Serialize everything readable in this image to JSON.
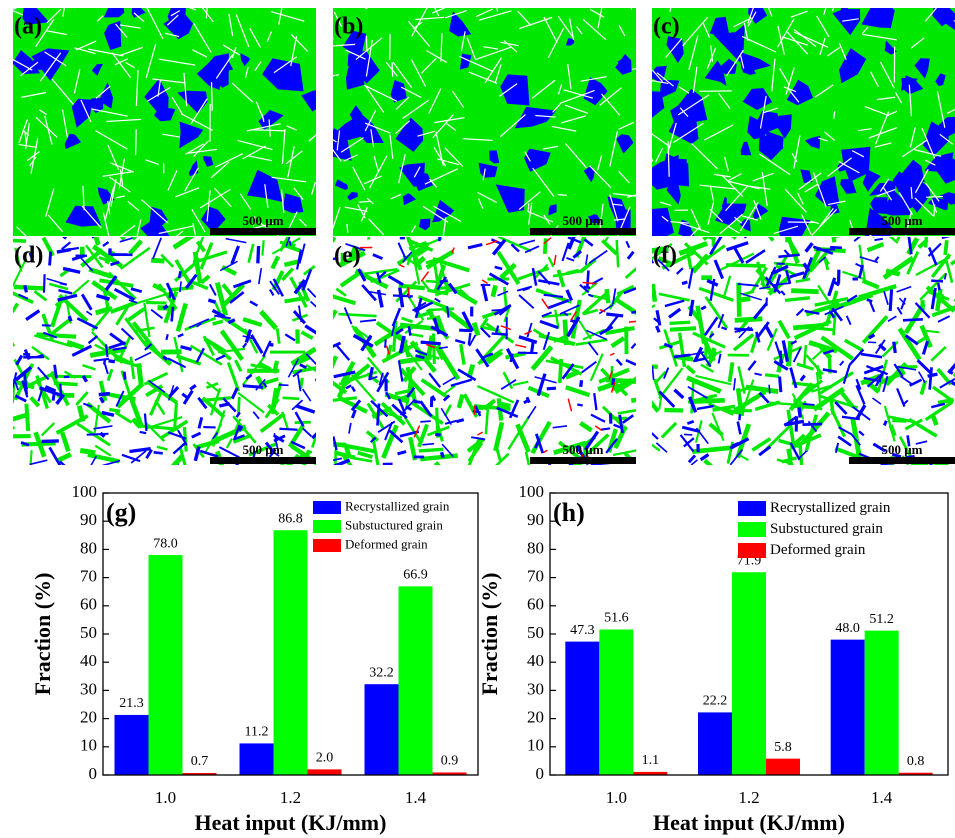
{
  "micrographs": [
    {
      "label": "(a)",
      "scale_bar": "500 μm"
    },
    {
      "label": "(b)",
      "scale_bar": "500 μm"
    },
    {
      "label": "(c)",
      "scale_bar": "500 μm"
    },
    {
      "label": "(d)",
      "scale_bar": "500 μm"
    },
    {
      "label": "(e)",
      "scale_bar": "500 μm"
    },
    {
      "label": "(f)",
      "scale_bar": "500 μm"
    }
  ],
  "chart_data": [
    {
      "type": "bar",
      "panel_label": "(g)",
      "y_label": "Fraction (%)",
      "x_label": "Heat input (KJ/mm)",
      "categories": [
        "1.0",
        "1.2",
        "1.4"
      ],
      "series": [
        {
          "name": "Recrystallized grain",
          "color": "#0000ff",
          "values": [
            21.3,
            11.2,
            32.2
          ],
          "value_labels": [
            "21.3",
            "11.2",
            "32.2"
          ]
        },
        {
          "name": "Substuctured grain",
          "color": "#00ff00",
          "values": [
            78.0,
            86.8,
            66.9
          ],
          "value_labels": [
            "78.0",
            "86.8",
            "66.9"
          ]
        },
        {
          "name": "Deformed grain",
          "color": "#ff0000",
          "values": [
            0.7,
            2.0,
            0.9
          ],
          "value_labels": [
            "0.7",
            "2.0",
            "0.9"
          ]
        }
      ],
      "ylim": [
        0,
        100
      ],
      "yticks": [
        0,
        10,
        20,
        30,
        40,
        50,
        60,
        70,
        80,
        90,
        100
      ],
      "legend": "upper right"
    },
    {
      "type": "bar",
      "panel_label": "(h)",
      "y_label": "Fraction (%)",
      "x_label": "Heat input (KJ/mm)",
      "categories": [
        "1.0",
        "1.2",
        "1.4"
      ],
      "series": [
        {
          "name": "Recrystallized grain",
          "color": "#0000ff",
          "values": [
            47.3,
            22.2,
            48.0
          ],
          "value_labels": [
            "47.3",
            "22.2",
            "48.0"
          ]
        },
        {
          "name": "Substuctured grain",
          "color": "#00ff00",
          "values": [
            51.6,
            71.9,
            51.2
          ],
          "value_labels": [
            "51.6",
            "71.9",
            "51.2"
          ]
        },
        {
          "name": "Deformed grain",
          "color": "#ff0000",
          "values": [
            1.1,
            5.8,
            0.8
          ],
          "value_labels": [
            "1.1",
            "5.8",
            "0.8"
          ]
        }
      ],
      "ylim": [
        0,
        100
      ],
      "yticks": [
        0,
        10,
        20,
        30,
        40,
        50,
        60,
        70,
        80,
        90,
        100
      ],
      "legend": "upper right"
    }
  ]
}
